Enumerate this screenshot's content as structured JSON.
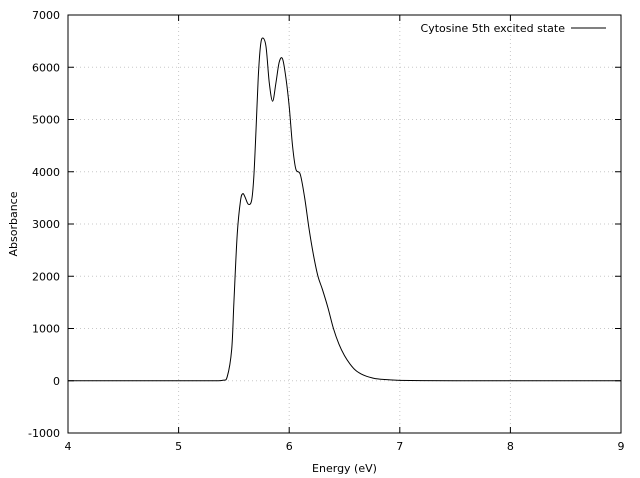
{
  "chart_data": {
    "type": "line",
    "title": "",
    "xlabel": "Energy (eV)",
    "ylabel": "Absorbance",
    "xlim": [
      4,
      9
    ],
    "ylim": [
      -1000,
      7000
    ],
    "xticks": [
      4,
      5,
      6,
      7,
      8,
      9
    ],
    "yticks": [
      -1000,
      0,
      1000,
      2000,
      3000,
      4000,
      5000,
      6000,
      7000
    ],
    "grid": true,
    "legend_position": "top-right",
    "series": [
      {
        "name": "Cytosine 5th excited state",
        "color": "#000000",
        "x": [
          4.0,
          5.0,
          5.3,
          5.4,
          5.44,
          5.48,
          5.5,
          5.53,
          5.56,
          5.58,
          5.6,
          5.63,
          5.66,
          5.68,
          5.7,
          5.72,
          5.74,
          5.76,
          5.79,
          5.82,
          5.85,
          5.88,
          5.91,
          5.94,
          5.97,
          6.0,
          6.03,
          6.06,
          6.1,
          6.14,
          6.18,
          6.22,
          6.26,
          6.3,
          6.35,
          6.4,
          6.45,
          6.5,
          6.55,
          6.6,
          6.65,
          6.7,
          6.75,
          6.8,
          6.9,
          7.0,
          7.2,
          7.5,
          8.0,
          9.0
        ],
        "y": [
          0,
          0,
          0,
          10,
          80,
          600,
          1500,
          2800,
          3450,
          3580,
          3520,
          3380,
          3450,
          3900,
          4800,
          5800,
          6400,
          6560,
          6400,
          5700,
          5350,
          5700,
          6100,
          6160,
          5800,
          5250,
          4500,
          4050,
          3950,
          3500,
          2900,
          2400,
          2000,
          1750,
          1400,
          1000,
          700,
          480,
          320,
          200,
          130,
          85,
          55,
          35,
          18,
          8,
          2,
          0,
          0,
          0
        ]
      }
    ]
  }
}
